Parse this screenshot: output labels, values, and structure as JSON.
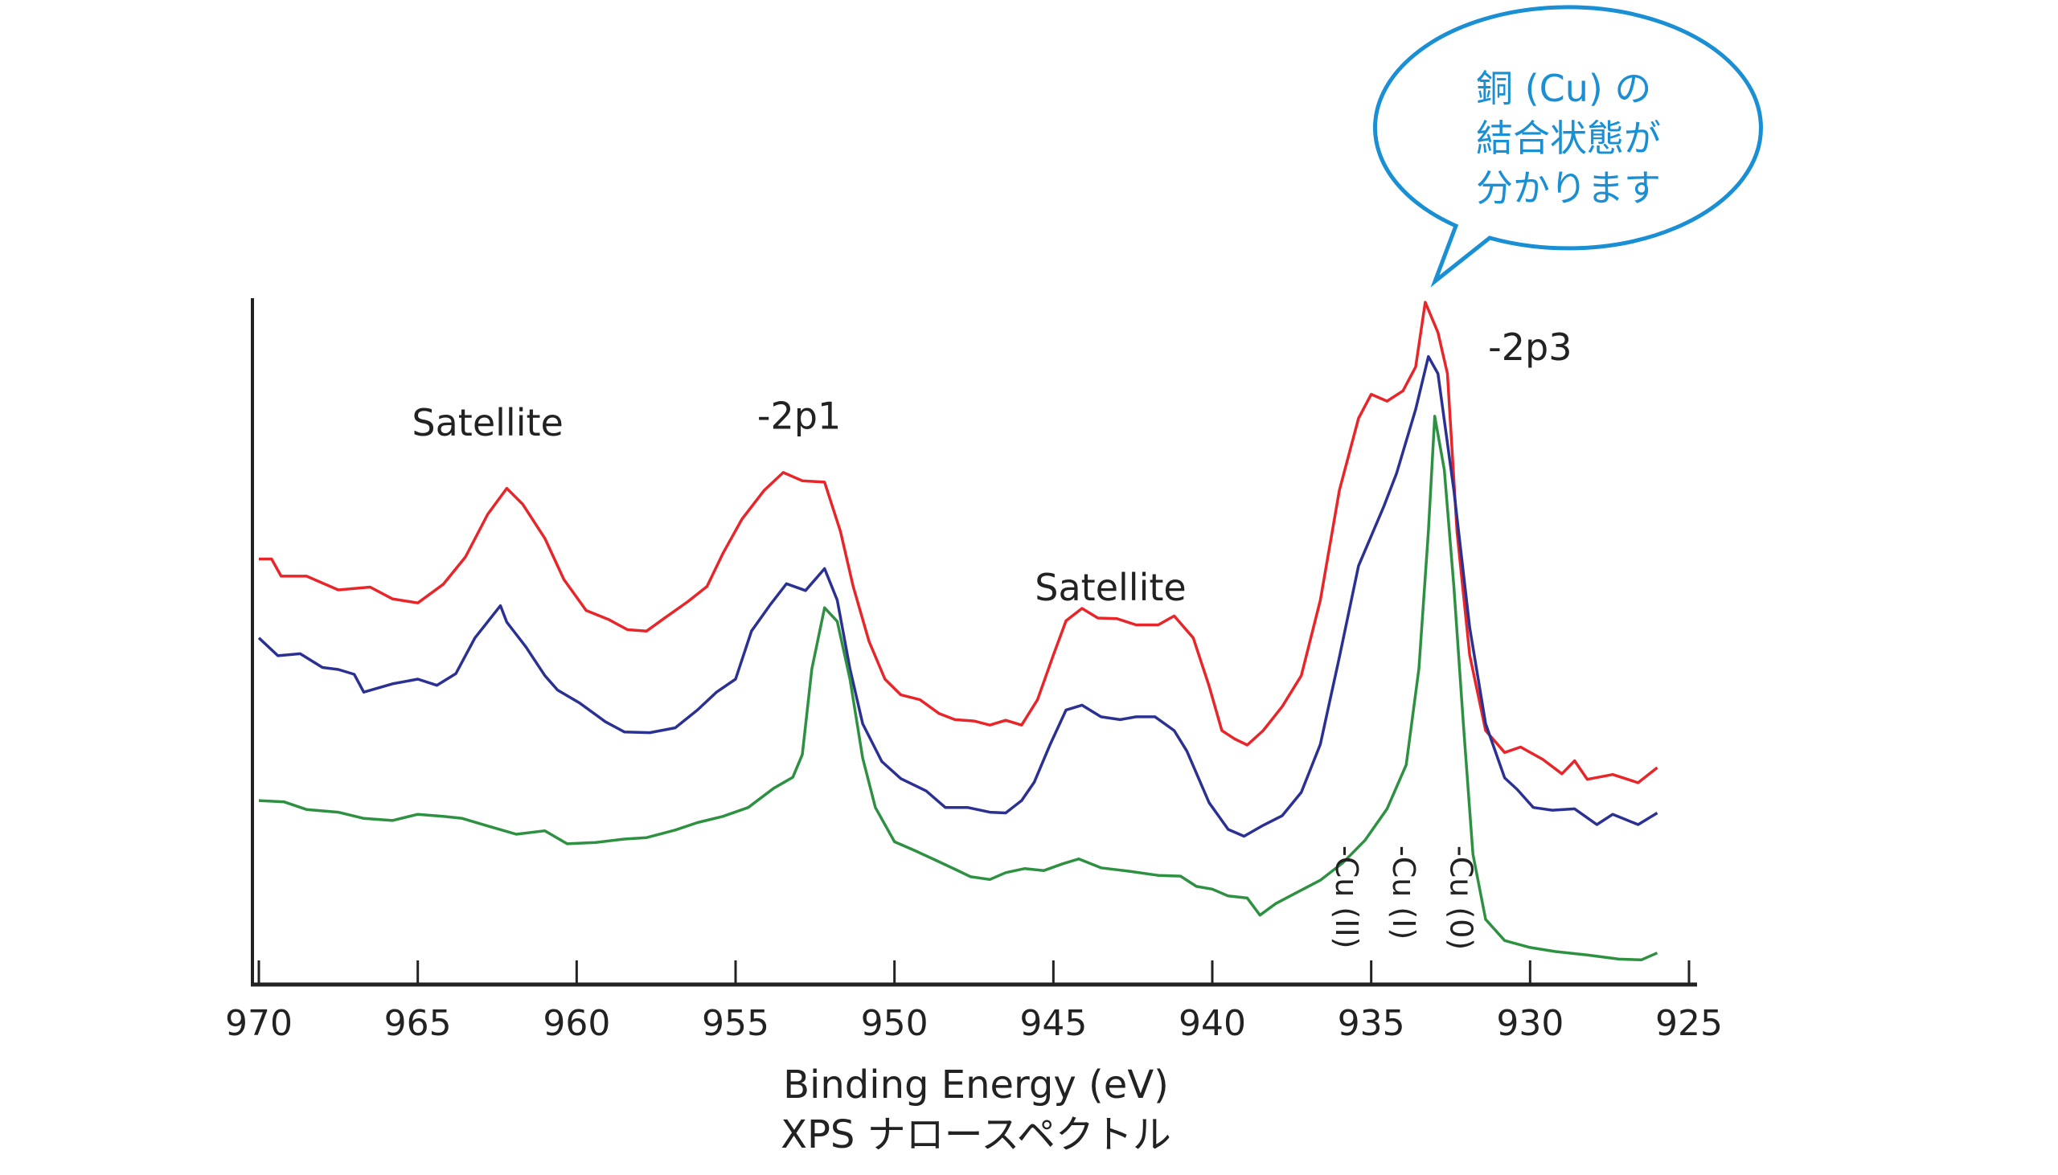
{
  "chart_data": {
    "type": "line",
    "title": "",
    "xlabel": "Binding Energy (eV)",
    "subtitle": "XPS ナロースペクトル",
    "ylabel": "",
    "xlim": [
      970,
      925
    ],
    "ylim": [
      0,
      100
    ],
    "x_reversed": true,
    "grid": false,
    "x_ticks": [
      970,
      965,
      960,
      955,
      950,
      945,
      940,
      935,
      930,
      925
    ],
    "x_tick_labels": [
      "970",
      "965",
      "960",
      "955",
      "950",
      "945",
      "940",
      "935",
      "930",
      "925"
    ],
    "series": [
      {
        "name": "red",
        "color": "#e8262a",
        "points": [
          [
            970,
            62
          ],
          [
            969.6,
            62
          ],
          [
            969.3,
            59.5
          ],
          [
            968.5,
            59.5
          ],
          [
            967.5,
            57.5
          ],
          [
            966.5,
            57.9
          ],
          [
            965.8,
            56.2
          ],
          [
            965,
            55.6
          ],
          [
            964.2,
            58.3
          ],
          [
            963.5,
            62.3
          ],
          [
            962.8,
            68.5
          ],
          [
            962.2,
            72.3
          ],
          [
            961.7,
            70
          ],
          [
            961,
            65
          ],
          [
            960.4,
            59
          ],
          [
            959.7,
            54.5
          ],
          [
            959,
            53.2
          ],
          [
            958.4,
            51.7
          ],
          [
            957.8,
            51.5
          ],
          [
            957.2,
            53.5
          ],
          [
            956.5,
            55.8
          ],
          [
            955.9,
            58
          ],
          [
            955.4,
            62.8
          ],
          [
            954.8,
            67.8
          ],
          [
            954.1,
            72
          ],
          [
            953.5,
            74.6
          ],
          [
            952.9,
            73.4
          ],
          [
            952.2,
            73.2
          ],
          [
            951.7,
            66
          ],
          [
            951.3,
            58
          ],
          [
            950.8,
            50
          ],
          [
            950.3,
            44.5
          ],
          [
            949.8,
            42.2
          ],
          [
            949.2,
            41.5
          ],
          [
            948.6,
            39.5
          ],
          [
            948.1,
            38.6
          ],
          [
            947.5,
            38.4
          ],
          [
            947,
            37.8
          ],
          [
            946.5,
            38.5
          ],
          [
            946,
            37.8
          ],
          [
            945.5,
            41.5
          ],
          [
            945,
            48
          ],
          [
            944.6,
            53
          ],
          [
            944.1,
            54.8
          ],
          [
            943.6,
            53.4
          ],
          [
            943,
            53.3
          ],
          [
            942.4,
            52.4
          ],
          [
            941.7,
            52.4
          ],
          [
            941.2,
            53.7
          ],
          [
            940.6,
            50.5
          ],
          [
            940.1,
            43.5
          ],
          [
            939.7,
            37
          ],
          [
            939.3,
            35.8
          ],
          [
            938.9,
            34.9
          ],
          [
            938.4,
            37
          ],
          [
            937.8,
            40.5
          ],
          [
            937.2,
            45
          ],
          [
            936.6,
            56
          ],
          [
            936,
            72
          ],
          [
            935.4,
            82.5
          ],
          [
            935,
            86
          ],
          [
            934.5,
            85
          ],
          [
            934,
            86.5
          ],
          [
            933.6,
            90
          ],
          [
            933.3,
            99.4
          ],
          [
            932.9,
            95
          ],
          [
            932.6,
            89
          ],
          [
            932.3,
            66
          ],
          [
            931.9,
            48
          ],
          [
            931.4,
            37
          ],
          [
            930.8,
            33.8
          ],
          [
            930.3,
            34.6
          ],
          [
            929.6,
            32.8
          ],
          [
            929,
            30.7
          ],
          [
            928.6,
            32.6
          ],
          [
            928.2,
            29.9
          ],
          [
            927.4,
            30.6
          ],
          [
            926.6,
            29.4
          ],
          [
            926,
            31.6
          ]
        ]
      },
      {
        "name": "blue",
        "color": "#2b3192",
        "points": [
          [
            970,
            50.5
          ],
          [
            969.4,
            47.9
          ],
          [
            968.7,
            48.2
          ],
          [
            968,
            46.2
          ],
          [
            967.5,
            45.9
          ],
          [
            967,
            45.2
          ],
          [
            966.7,
            42.6
          ],
          [
            965.8,
            43.8
          ],
          [
            965,
            44.5
          ],
          [
            964.4,
            43.6
          ],
          [
            963.8,
            45.3
          ],
          [
            963.2,
            50.5
          ],
          [
            962.4,
            55.2
          ],
          [
            962.2,
            52.8
          ],
          [
            961.6,
            49.2
          ],
          [
            961,
            45
          ],
          [
            960.6,
            42.9
          ],
          [
            959.9,
            41
          ],
          [
            959.1,
            38.3
          ],
          [
            958.5,
            36.8
          ],
          [
            957.7,
            36.7
          ],
          [
            956.9,
            37.4
          ],
          [
            956.2,
            40
          ],
          [
            955.6,
            42.6
          ],
          [
            955,
            44.5
          ],
          [
            954.5,
            51.5
          ],
          [
            953.9,
            55.4
          ],
          [
            953.4,
            58.4
          ],
          [
            952.8,
            57.4
          ],
          [
            952.2,
            60.6
          ],
          [
            951.8,
            56
          ],
          [
            951.4,
            46
          ],
          [
            951,
            38
          ],
          [
            950.4,
            32.5
          ],
          [
            949.8,
            30
          ],
          [
            949,
            28.2
          ],
          [
            948.4,
            25.8
          ],
          [
            947.7,
            25.8
          ],
          [
            947,
            25.1
          ],
          [
            946.5,
            25
          ],
          [
            946,
            26.8
          ],
          [
            945.6,
            29.5
          ],
          [
            945.1,
            35
          ],
          [
            944.6,
            40
          ],
          [
            944.1,
            40.7
          ],
          [
            943.5,
            39
          ],
          [
            942.9,
            38.6
          ],
          [
            942.4,
            39
          ],
          [
            941.8,
            39
          ],
          [
            941.2,
            37
          ],
          [
            940.8,
            34
          ],
          [
            940.1,
            26.5
          ],
          [
            939.5,
            22.6
          ],
          [
            939,
            21.6
          ],
          [
            938.4,
            23.2
          ],
          [
            937.8,
            24.6
          ],
          [
            937.2,
            28
          ],
          [
            936.6,
            35
          ],
          [
            936,
            47.7
          ],
          [
            935.4,
            61
          ],
          [
            934.6,
            69.7
          ],
          [
            934.2,
            74.5
          ],
          [
            933.6,
            83.8
          ],
          [
            933.2,
            91.5
          ],
          [
            932.9,
            89
          ],
          [
            932.4,
            72
          ],
          [
            931.9,
            52
          ],
          [
            931.4,
            38
          ],
          [
            930.8,
            30.1
          ],
          [
            930.4,
            28.4
          ],
          [
            929.9,
            25.8
          ],
          [
            929.3,
            25.4
          ],
          [
            928.6,
            25.6
          ],
          [
            927.9,
            23.3
          ],
          [
            927.4,
            24.8
          ],
          [
            926.6,
            23.3
          ],
          [
            926,
            25
          ]
        ]
      },
      {
        "name": "green",
        "color": "#2e9142",
        "points": [
          [
            970,
            26.8
          ],
          [
            969.2,
            26.6
          ],
          [
            968.5,
            25.5
          ],
          [
            967.5,
            25.1
          ],
          [
            966.7,
            24.2
          ],
          [
            965.8,
            23.9
          ],
          [
            965,
            24.8
          ],
          [
            964.2,
            24.5
          ],
          [
            963.6,
            24.2
          ],
          [
            962.8,
            23.1
          ],
          [
            961.9,
            21.9
          ],
          [
            961,
            22.4
          ],
          [
            960.3,
            20.5
          ],
          [
            959.4,
            20.7
          ],
          [
            958.5,
            21.2
          ],
          [
            957.8,
            21.4
          ],
          [
            956.9,
            22.5
          ],
          [
            956.2,
            23.6
          ],
          [
            955.4,
            24.5
          ],
          [
            954.6,
            25.8
          ],
          [
            953.8,
            28.6
          ],
          [
            953.2,
            30.2
          ],
          [
            952.9,
            33.5
          ],
          [
            952.6,
            46
          ],
          [
            952.2,
            54.9
          ],
          [
            951.8,
            52.9
          ],
          [
            951.4,
            44.5
          ],
          [
            951,
            33
          ],
          [
            950.6,
            25.8
          ],
          [
            950,
            20.8
          ],
          [
            949.4,
            19.6
          ],
          [
            948.7,
            18.1
          ],
          [
            948.1,
            16.8
          ],
          [
            947.6,
            15.7
          ],
          [
            947,
            15.3
          ],
          [
            946.5,
            16.3
          ],
          [
            945.9,
            16.9
          ],
          [
            945.3,
            16.6
          ],
          [
            944.7,
            17.6
          ],
          [
            944.2,
            18.3
          ],
          [
            943.5,
            17
          ],
          [
            942.6,
            16.5
          ],
          [
            941.7,
            15.9
          ],
          [
            941,
            15.8
          ],
          [
            940.5,
            14.3
          ],
          [
            940,
            13.9
          ],
          [
            939.5,
            12.9
          ],
          [
            938.9,
            12.6
          ],
          [
            938.5,
            10.1
          ],
          [
            938,
            11.8
          ],
          [
            937.3,
            13.5
          ],
          [
            936.6,
            15.2
          ],
          [
            935.9,
            17.7
          ],
          [
            935.2,
            21
          ],
          [
            934.5,
            25.6
          ],
          [
            933.9,
            32
          ],
          [
            933.5,
            46
          ],
          [
            933.2,
            66
          ],
          [
            933,
            82.8
          ],
          [
            932.7,
            75
          ],
          [
            932.4,
            58
          ],
          [
            932.1,
            38
          ],
          [
            931.8,
            19
          ],
          [
            931.4,
            9.5
          ],
          [
            930.8,
            6.4
          ],
          [
            930,
            5.4
          ],
          [
            929.2,
            4.8
          ],
          [
            928.2,
            4.3
          ],
          [
            927.2,
            3.7
          ],
          [
            926.5,
            3.6
          ],
          [
            926,
            4.6
          ]
        ]
      }
    ],
    "annotations": {
      "satellite_1": {
        "text": "Satellite",
        "x": 962.8,
        "y": 80
      },
      "peak_2p1": {
        "text": "-2p1",
        "x": 953.0,
        "y": 81
      },
      "satellite_2": {
        "text": "Satellite",
        "x": 943.2,
        "y": 56
      },
      "peak_2p3": {
        "text": "-2p3",
        "x": 930.0,
        "y": 91
      },
      "cu_ii": {
        "text": "-Cu (II)",
        "x": 935.8
      },
      "cu_i": {
        "text": "-Cu (I)",
        "x": 934.0
      },
      "cu_0": {
        "text": "-Cu (0)",
        "x": 932.2
      }
    },
    "callout": {
      "lines": [
        "銅 (Cu) の",
        "結合状態が",
        "分かります"
      ],
      "color": "#1a8fd4",
      "points_to": {
        "x": 933.2,
        "y": 99.4
      }
    }
  }
}
